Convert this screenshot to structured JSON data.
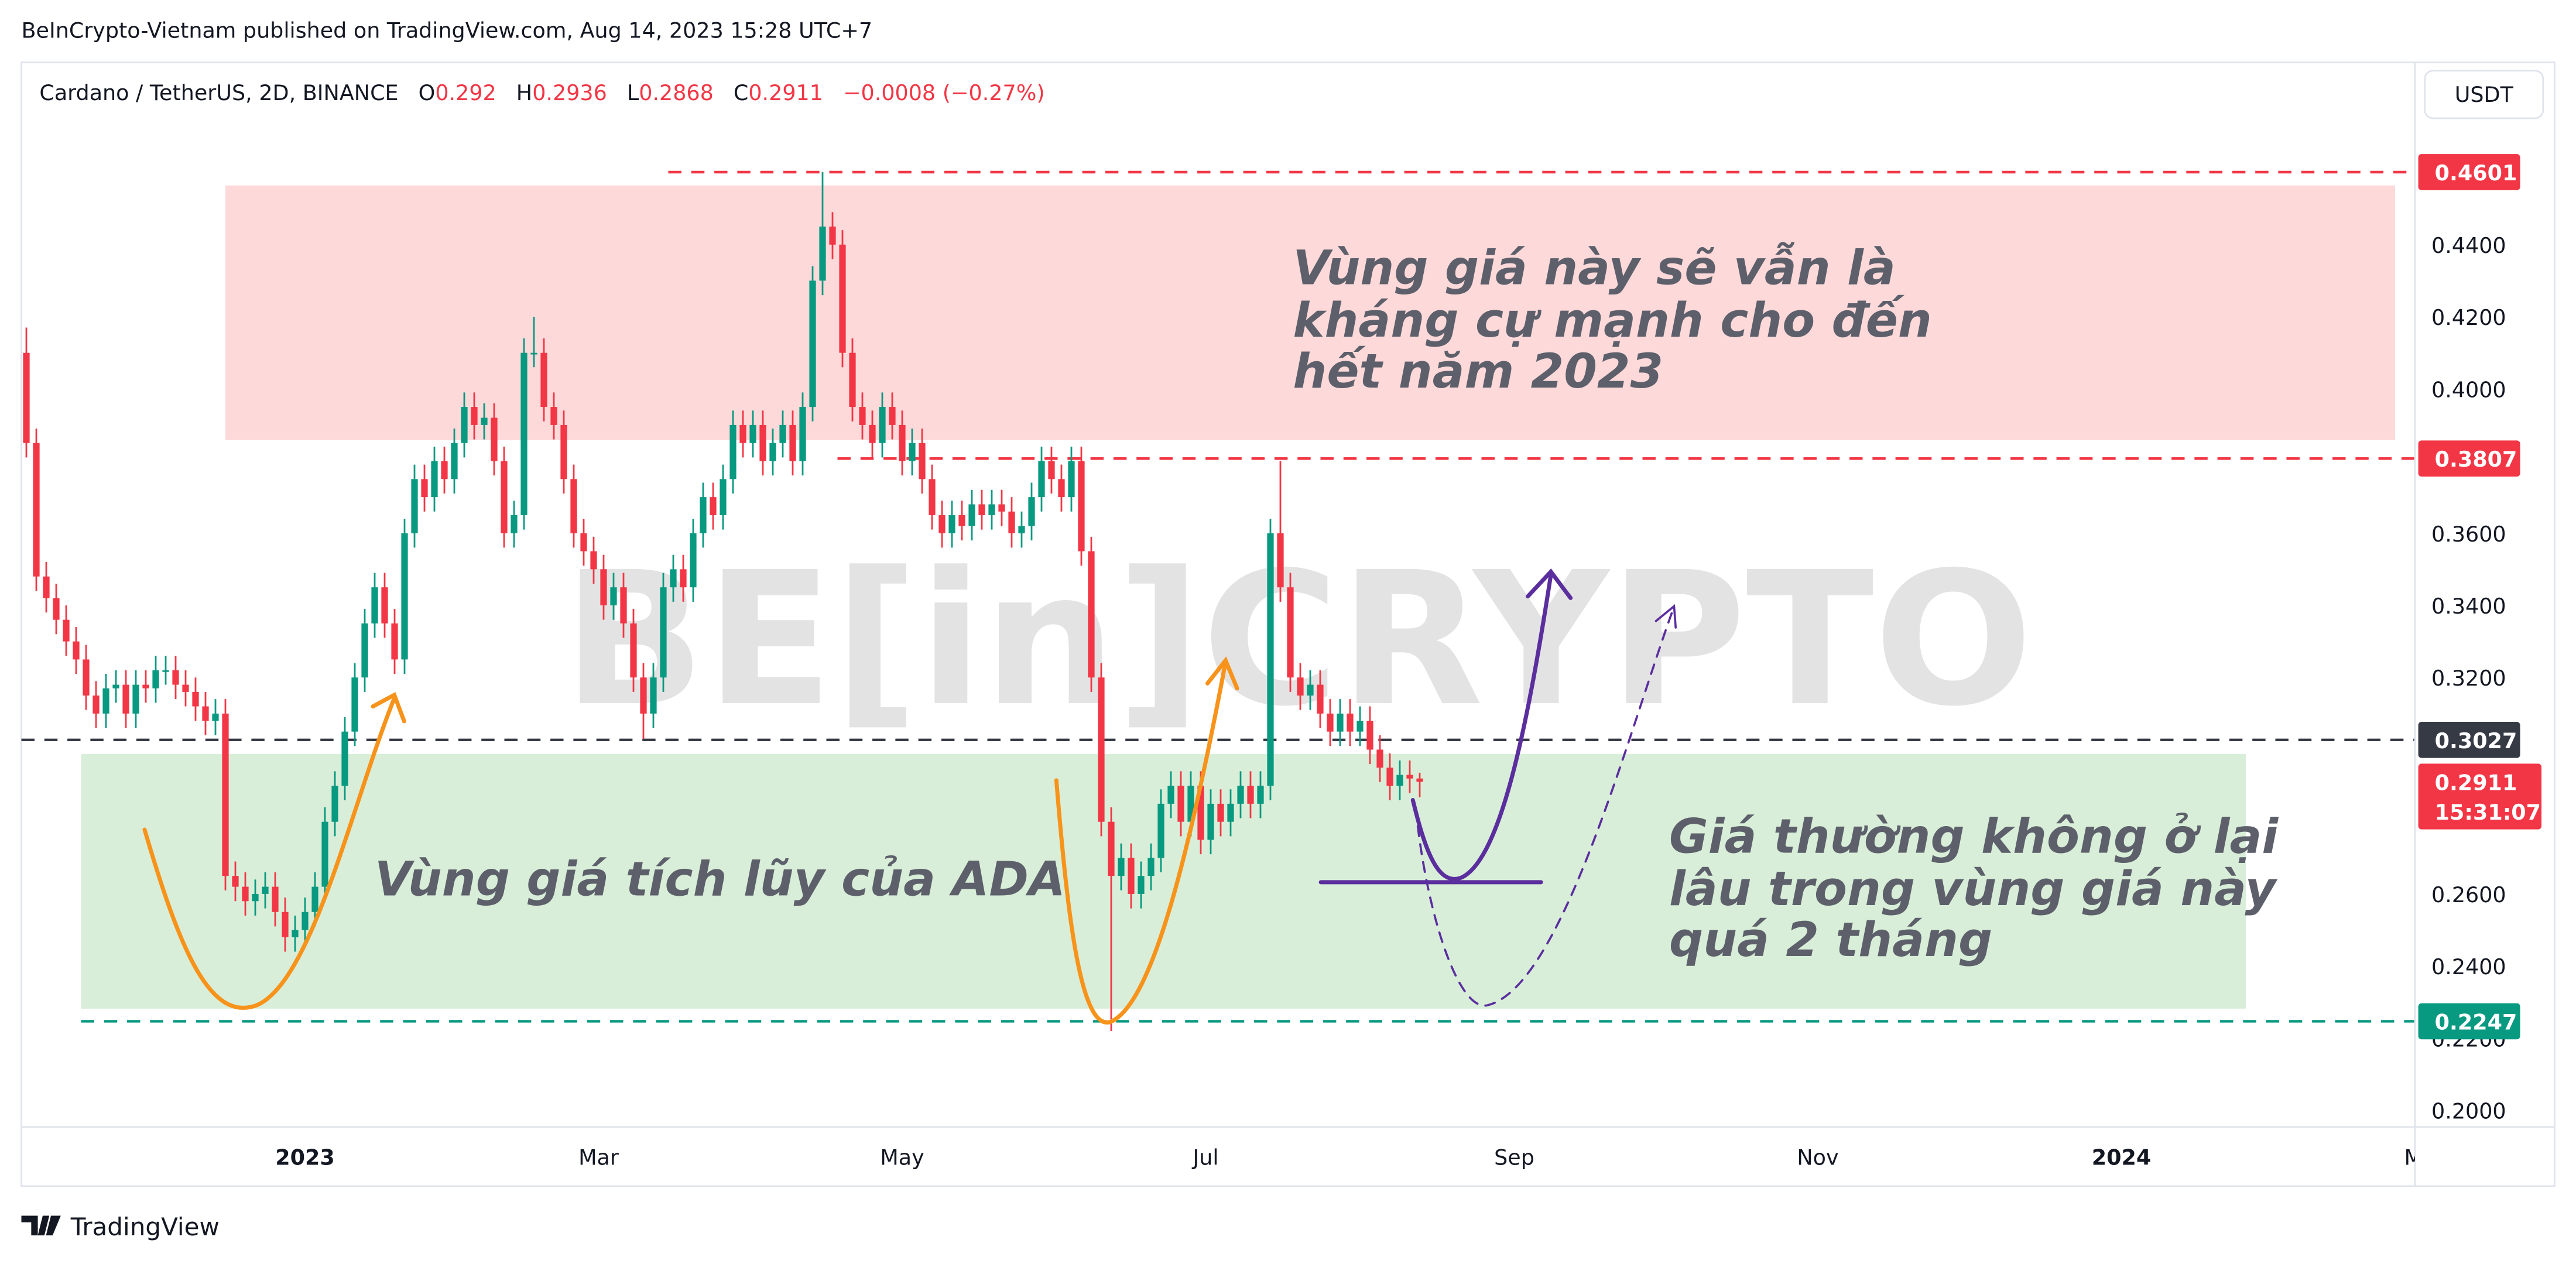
{
  "header": {
    "byline": "BeInCrypto-Vietnam published on TradingView.com, Aug 14, 2023 15:28 UTC+7",
    "footer_logo": "TradingView",
    "currency_button": "USDT",
    "watermark": "BE[in]CRYPTO"
  },
  "chart_data": {
    "type": "candlestick",
    "title": "Cardano / TetherUS, 2D, BINANCE",
    "ohlc_labels": [
      "O",
      "H",
      "L",
      "C"
    ],
    "change": "−0.0008 (−0.27%)",
    "up_color": "#089981",
    "down_color": "#f23645",
    "grid": false,
    "xlim": [
      "2022-11-05",
      "2024-02-29"
    ],
    "ylim": [
      0.1954,
      0.4905
    ],
    "xticks": [
      {
        "value": "2023-01-01",
        "label": "2023"
      },
      {
        "value": "2023-03-01",
        "label": "Mar"
      },
      {
        "value": "2023-05-01",
        "label": "May"
      },
      {
        "value": "2023-07-01",
        "label": "Jul"
      },
      {
        "value": "2023-09-01",
        "label": "Sep"
      },
      {
        "value": "2023-11-01",
        "label": "Nov"
      },
      {
        "value": "2024-01-01",
        "label": "2024"
      },
      {
        "value": "2024-03-01",
        "label": "Ma"
      }
    ],
    "yticks": [
      {
        "value": 0.44,
        "label": "0.4400"
      },
      {
        "value": 0.42,
        "label": "0.4200"
      },
      {
        "value": 0.4,
        "label": "0.4000"
      },
      {
        "value": 0.36,
        "label": "0.3600"
      },
      {
        "value": 0.34,
        "label": "0.3400"
      },
      {
        "value": 0.32,
        "label": "0.3200"
      },
      {
        "value": 0.26,
        "label": "0.2600"
      },
      {
        "value": 0.24,
        "label": "0.2400"
      },
      {
        "value": 0.22,
        "label": "0.2200"
      },
      {
        "value": 0.2,
        "label": "0.2000"
      }
    ],
    "candles": {
      "x": [
        "2022-11-06",
        "2022-11-08",
        "2022-11-10",
        "2022-11-12",
        "2022-11-14",
        "2022-11-16",
        "2022-11-18",
        "2022-11-20",
        "2022-11-22",
        "2022-11-24",
        "2022-11-26",
        "2022-11-28",
        "2022-11-30",
        "2022-12-02",
        "2022-12-04",
        "2022-12-06",
        "2022-12-08",
        "2022-12-10",
        "2022-12-12",
        "2022-12-14",
        "2022-12-16",
        "2022-12-18",
        "2022-12-20",
        "2022-12-22",
        "2022-12-24",
        "2022-12-26",
        "2022-12-28",
        "2022-12-30",
        "2023-01-01",
        "2023-01-03",
        "2023-01-05",
        "2023-01-07",
        "2023-01-09",
        "2023-01-11",
        "2023-01-13",
        "2023-01-15",
        "2023-01-17",
        "2023-01-19",
        "2023-01-21",
        "2023-01-23",
        "2023-01-25",
        "2023-01-27",
        "2023-01-29",
        "2023-01-31",
        "2023-02-02",
        "2023-02-04",
        "2023-02-06",
        "2023-02-08",
        "2023-02-10",
        "2023-02-12",
        "2023-02-14",
        "2023-02-16",
        "2023-02-18",
        "2023-02-20",
        "2023-02-22",
        "2023-02-24",
        "2023-02-26",
        "2023-02-28",
        "2023-03-02",
        "2023-03-04",
        "2023-03-06",
        "2023-03-08",
        "2023-03-10",
        "2023-03-12",
        "2023-03-14",
        "2023-03-16",
        "2023-03-18",
        "2023-03-20",
        "2023-03-22",
        "2023-03-24",
        "2023-03-26",
        "2023-03-28",
        "2023-03-30",
        "2023-04-01",
        "2023-04-03",
        "2023-04-05",
        "2023-04-07",
        "2023-04-09",
        "2023-04-11",
        "2023-04-13",
        "2023-04-15",
        "2023-04-17",
        "2023-04-19",
        "2023-04-21",
        "2023-04-23",
        "2023-04-25",
        "2023-04-27",
        "2023-04-29",
        "2023-05-01",
        "2023-05-03",
        "2023-05-05",
        "2023-05-07",
        "2023-05-09",
        "2023-05-11",
        "2023-05-13",
        "2023-05-15",
        "2023-05-17",
        "2023-05-19",
        "2023-05-21",
        "2023-05-23",
        "2023-05-25",
        "2023-05-27",
        "2023-05-29",
        "2023-05-31",
        "2023-06-02",
        "2023-06-04",
        "2023-06-06",
        "2023-06-08",
        "2023-06-10",
        "2023-06-12",
        "2023-06-14",
        "2023-06-16",
        "2023-06-18",
        "2023-06-20",
        "2023-06-22",
        "2023-06-24",
        "2023-06-26",
        "2023-06-28",
        "2023-06-30",
        "2023-07-02",
        "2023-07-04",
        "2023-07-06",
        "2023-07-08",
        "2023-07-10",
        "2023-07-12",
        "2023-07-14",
        "2023-07-16",
        "2023-07-18",
        "2023-07-20",
        "2023-07-22",
        "2023-07-24",
        "2023-07-26",
        "2023-07-28",
        "2023-07-30",
        "2023-08-01",
        "2023-08-03",
        "2023-08-05",
        "2023-08-07",
        "2023-08-09",
        "2023-08-11",
        "2023-08-13"
      ],
      "ohlc": [
        [
          0.41,
          0.417,
          0.381,
          0.385
        ],
        [
          0.385,
          0.389,
          0.344,
          0.348
        ],
        [
          0.348,
          0.352,
          0.338,
          0.342
        ],
        [
          0.342,
          0.346,
          0.332,
          0.336
        ],
        [
          0.336,
          0.34,
          0.326,
          0.33
        ],
        [
          0.33,
          0.334,
          0.321,
          0.325
        ],
        [
          0.325,
          0.329,
          0.311,
          0.315
        ],
        [
          0.315,
          0.319,
          0.306,
          0.31
        ],
        [
          0.31,
          0.321,
          0.306,
          0.317
        ],
        [
          0.317,
          0.322,
          0.313,
          0.318
        ],
        [
          0.318,
          0.322,
          0.306,
          0.31
        ],
        [
          0.31,
          0.322,
          0.306,
          0.318
        ],
        [
          0.318,
          0.322,
          0.313,
          0.317
        ],
        [
          0.317,
          0.326,
          0.313,
          0.322
        ],
        [
          0.322,
          0.326,
          0.318,
          0.322
        ],
        [
          0.322,
          0.326,
          0.314,
          0.318
        ],
        [
          0.318,
          0.322,
          0.312,
          0.316
        ],
        [
          0.316,
          0.32,
          0.308,
          0.312
        ],
        [
          0.312,
          0.316,
          0.304,
          0.308
        ],
        [
          0.308,
          0.314,
          0.304,
          0.31
        ],
        [
          0.31,
          0.314,
          0.261,
          0.265
        ],
        [
          0.265,
          0.269,
          0.258,
          0.262
        ],
        [
          0.262,
          0.266,
          0.254,
          0.258
        ],
        [
          0.258,
          0.264,
          0.254,
          0.26
        ],
        [
          0.26,
          0.266,
          0.256,
          0.262
        ],
        [
          0.262,
          0.266,
          0.251,
          0.255
        ],
        [
          0.255,
          0.259,
          0.244,
          0.248
        ],
        [
          0.248,
          0.254,
          0.244,
          0.25
        ],
        [
          0.25,
          0.259,
          0.246,
          0.255
        ],
        [
          0.255,
          0.266,
          0.251,
          0.262
        ],
        [
          0.262,
          0.284,
          0.258,
          0.28
        ],
        [
          0.28,
          0.294,
          0.276,
          0.29
        ],
        [
          0.29,
          0.309,
          0.286,
          0.305
        ],
        [
          0.305,
          0.324,
          0.301,
          0.32
        ],
        [
          0.32,
          0.339,
          0.316,
          0.335
        ],
        [
          0.335,
          0.349,
          0.331,
          0.345
        ],
        [
          0.345,
          0.349,
          0.331,
          0.335
        ],
        [
          0.335,
          0.339,
          0.321,
          0.325
        ],
        [
          0.325,
          0.364,
          0.321,
          0.36
        ],
        [
          0.36,
          0.379,
          0.356,
          0.375
        ],
        [
          0.375,
          0.379,
          0.366,
          0.37
        ],
        [
          0.37,
          0.384,
          0.366,
          0.38
        ],
        [
          0.38,
          0.384,
          0.371,
          0.375
        ],
        [
          0.375,
          0.389,
          0.371,
          0.385
        ],
        [
          0.385,
          0.399,
          0.381,
          0.395
        ],
        [
          0.395,
          0.399,
          0.386,
          0.39
        ],
        [
          0.39,
          0.396,
          0.386,
          0.392
        ],
        [
          0.392,
          0.396,
          0.376,
          0.38
        ],
        [
          0.38,
          0.384,
          0.356,
          0.36
        ],
        [
          0.36,
          0.369,
          0.356,
          0.365
        ],
        [
          0.365,
          0.414,
          0.361,
          0.41
        ],
        [
          0.41,
          0.42,
          0.406,
          0.41
        ],
        [
          0.41,
          0.414,
          0.391,
          0.395
        ],
        [
          0.395,
          0.399,
          0.386,
          0.39
        ],
        [
          0.39,
          0.394,
          0.371,
          0.375
        ],
        [
          0.375,
          0.379,
          0.356,
          0.36
        ],
        [
          0.36,
          0.364,
          0.351,
          0.355
        ],
        [
          0.355,
          0.359,
          0.346,
          0.35
        ],
        [
          0.35,
          0.354,
          0.336,
          0.34
        ],
        [
          0.34,
          0.349,
          0.336,
          0.345
        ],
        [
          0.345,
          0.349,
          0.331,
          0.335
        ],
        [
          0.335,
          0.339,
          0.316,
          0.32
        ],
        [
          0.32,
          0.324,
          0.303,
          0.31
        ],
        [
          0.31,
          0.324,
          0.306,
          0.32
        ],
        [
          0.32,
          0.349,
          0.316,
          0.345
        ],
        [
          0.345,
          0.354,
          0.341,
          0.35
        ],
        [
          0.35,
          0.354,
          0.341,
          0.345
        ],
        [
          0.345,
          0.364,
          0.341,
          0.36
        ],
        [
          0.36,
          0.374,
          0.356,
          0.37
        ],
        [
          0.37,
          0.374,
          0.361,
          0.365
        ],
        [
          0.365,
          0.379,
          0.361,
          0.375
        ],
        [
          0.375,
          0.394,
          0.371,
          0.39
        ],
        [
          0.39,
          0.394,
          0.381,
          0.385
        ],
        [
          0.385,
          0.394,
          0.381,
          0.39
        ],
        [
          0.39,
          0.394,
          0.376,
          0.38
        ],
        [
          0.38,
          0.389,
          0.376,
          0.385
        ],
        [
          0.385,
          0.394,
          0.381,
          0.39
        ],
        [
          0.39,
          0.394,
          0.376,
          0.38
        ],
        [
          0.38,
          0.399,
          0.376,
          0.395
        ],
        [
          0.395,
          0.434,
          0.391,
          0.43
        ],
        [
          0.43,
          0.4601,
          0.426,
          0.445
        ],
        [
          0.445,
          0.449,
          0.436,
          0.44
        ],
        [
          0.44,
          0.444,
          0.406,
          0.41
        ],
        [
          0.41,
          0.414,
          0.391,
          0.395
        ],
        [
          0.395,
          0.399,
          0.386,
          0.39
        ],
        [
          0.39,
          0.394,
          0.381,
          0.385
        ],
        [
          0.385,
          0.399,
          0.381,
          0.395
        ],
        [
          0.395,
          0.399,
          0.386,
          0.39
        ],
        [
          0.39,
          0.394,
          0.376,
          0.38
        ],
        [
          0.38,
          0.389,
          0.376,
          0.385
        ],
        [
          0.385,
          0.389,
          0.371,
          0.375
        ],
        [
          0.375,
          0.379,
          0.361,
          0.365
        ],
        [
          0.365,
          0.369,
          0.356,
          0.36
        ],
        [
          0.36,
          0.369,
          0.356,
          0.365
        ],
        [
          0.365,
          0.369,
          0.358,
          0.362
        ],
        [
          0.362,
          0.372,
          0.358,
          0.368
        ],
        [
          0.368,
          0.372,
          0.361,
          0.365
        ],
        [
          0.365,
          0.372,
          0.361,
          0.368
        ],
        [
          0.368,
          0.372,
          0.362,
          0.366
        ],
        [
          0.366,
          0.37,
          0.356,
          0.36
        ],
        [
          0.36,
          0.366,
          0.356,
          0.362
        ],
        [
          0.362,
          0.374,
          0.358,
          0.37
        ],
        [
          0.37,
          0.384,
          0.366,
          0.38
        ],
        [
          0.38,
          0.384,
          0.371,
          0.375
        ],
        [
          0.375,
          0.379,
          0.366,
          0.37
        ],
        [
          0.37,
          0.384,
          0.366,
          0.38
        ],
        [
          0.38,
          0.384,
          0.351,
          0.355
        ],
        [
          0.355,
          0.359,
          0.316,
          0.32
        ],
        [
          0.32,
          0.324,
          0.276,
          0.28
        ],
        [
          0.28,
          0.284,
          0.222,
          0.265
        ],
        [
          0.265,
          0.274,
          0.261,
          0.27
        ],
        [
          0.27,
          0.274,
          0.256,
          0.26
        ],
        [
          0.26,
          0.269,
          0.256,
          0.265
        ],
        [
          0.265,
          0.274,
          0.261,
          0.27
        ],
        [
          0.27,
          0.289,
          0.266,
          0.285
        ],
        [
          0.285,
          0.294,
          0.281,
          0.29
        ],
        [
          0.29,
          0.294,
          0.276,
          0.28
        ],
        [
          0.28,
          0.294,
          0.276,
          0.29
        ],
        [
          0.29,
          0.294,
          0.271,
          0.275
        ],
        [
          0.275,
          0.289,
          0.271,
          0.285
        ],
        [
          0.285,
          0.289,
          0.276,
          0.28
        ],
        [
          0.28,
          0.289,
          0.276,
          0.285
        ],
        [
          0.285,
          0.294,
          0.281,
          0.29
        ],
        [
          0.29,
          0.294,
          0.281,
          0.285
        ],
        [
          0.285,
          0.294,
          0.281,
          0.29
        ],
        [
          0.29,
          0.364,
          0.286,
          0.36
        ],
        [
          0.36,
          0.38,
          0.341,
          0.345
        ],
        [
          0.345,
          0.349,
          0.316,
          0.32
        ],
        [
          0.32,
          0.324,
          0.311,
          0.315
        ],
        [
          0.315,
          0.322,
          0.311,
          0.318
        ],
        [
          0.318,
          0.322,
          0.306,
          0.31
        ],
        [
          0.31,
          0.314,
          0.301,
          0.305
        ],
        [
          0.305,
          0.314,
          0.301,
          0.31
        ],
        [
          0.31,
          0.314,
          0.301,
          0.305
        ],
        [
          0.305,
          0.312,
          0.301,
          0.308
        ],
        [
          0.308,
          0.312,
          0.296,
          0.3
        ],
        [
          0.3,
          0.304,
          0.291,
          0.295
        ],
        [
          0.295,
          0.299,
          0.286,
          0.29
        ],
        [
          0.29,
          0.297,
          0.286,
          0.293
        ],
        [
          0.293,
          0.297,
          0.288,
          0.292
        ],
        [
          0.292,
          0.2936,
          0.2868,
          0.2911
        ]
      ]
    },
    "last_price_countdown": "15:31:07",
    "levels": [
      {
        "value": 0.4601,
        "from": "2023-03-15",
        "color": "#f23645"
      },
      {
        "value": 0.3807,
        "from": "2023-04-18",
        "color": "#f23645"
      },
      {
        "value": 0.3027,
        "from": "2022-11-05",
        "color": "#363a45"
      },
      {
        "value": 0.2247,
        "from": "2022-11-17",
        "color": "#089981"
      }
    ],
    "zones": [
      {
        "x": [
          "2022-12-16",
          "2024-02-25"
        ],
        "y": [
          0.3858,
          0.4564
        ],
        "color": "#fdd9da"
      },
      {
        "x": [
          "2022-11-17",
          "2024-01-26"
        ],
        "y": [
          0.2282,
          0.2988
        ],
        "color": "#d8eed8"
      }
    ],
    "annotations": {
      "resistance": [
        "Vùng giá này sẽ vẫn là",
        "kháng cự mạnh cho đến",
        "hết năm 2023"
      ],
      "accumulation": "Vùng giá tích lũy của ADA",
      "duration": [
        "Giá thường không ở lại",
        "lâu trong vùng giá này",
        "quá 2 tháng"
      ]
    }
  }
}
